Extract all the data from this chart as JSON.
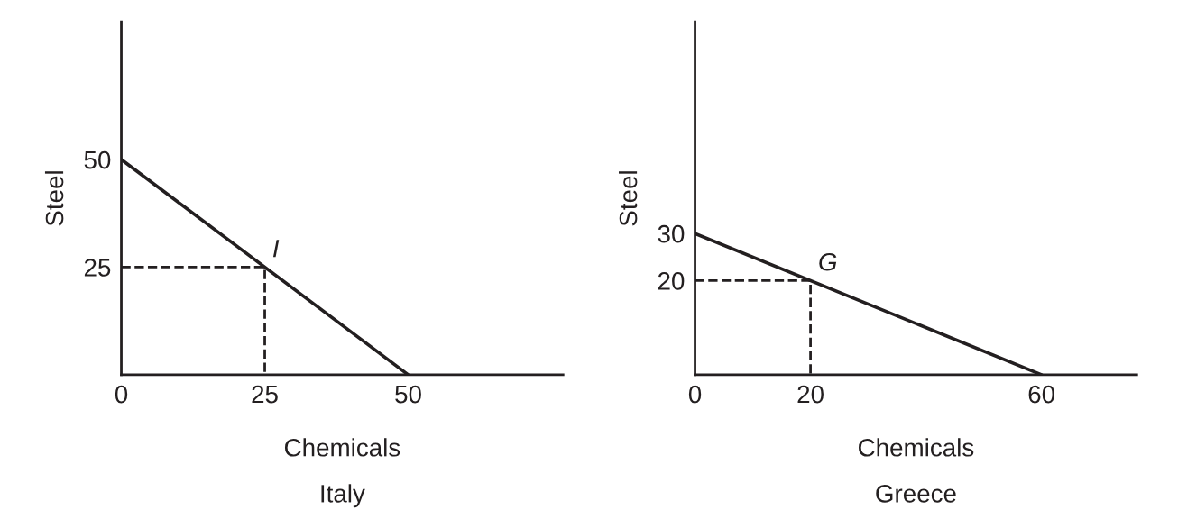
{
  "chart_data": [
    {
      "type": "line",
      "title": "Italy",
      "xlabel": "Chemicals",
      "ylabel": "Steel",
      "xlim": [
        0,
        77
      ],
      "ylim": [
        0,
        82
      ],
      "xticks": [
        0,
        25,
        50
      ],
      "yticks": [
        25,
        50
      ],
      "grid": false,
      "legend": false,
      "marker": "none",
      "series": [
        {
          "color": "#231f20",
          "x": [
            0,
            50
          ],
          "values": [
            50,
            0
          ],
          "line_style": "solid"
        },
        {
          "color": "#231f20",
          "x": [
            0,
            25,
            25
          ],
          "values": [
            25,
            25,
            0
          ],
          "line_style": "dashed"
        }
      ],
      "annotations": [
        {
          "text": "I",
          "x": 25,
          "y": 25
        }
      ]
    },
    {
      "type": "line",
      "title": "Greece",
      "xlabel": "Chemicals",
      "ylabel": "Steel",
      "xlim": [
        0,
        76.5
      ],
      "ylim": [
        0,
        75
      ],
      "xticks": [
        0,
        20,
        60
      ],
      "yticks": [
        20,
        30
      ],
      "grid": false,
      "legend": false,
      "marker": "none",
      "series": [
        {
          "color": "#231f20",
          "x": [
            0,
            60
          ],
          "values": [
            30,
            0
          ],
          "line_style": "solid"
        },
        {
          "color": "#231f20",
          "x": [
            0,
            20,
            20
          ],
          "values": [
            20,
            20,
            0
          ],
          "line_style": "dashed"
        }
      ],
      "annotations": [
        {
          "text": "G",
          "x": 20,
          "y": 20
        }
      ]
    }
  ]
}
